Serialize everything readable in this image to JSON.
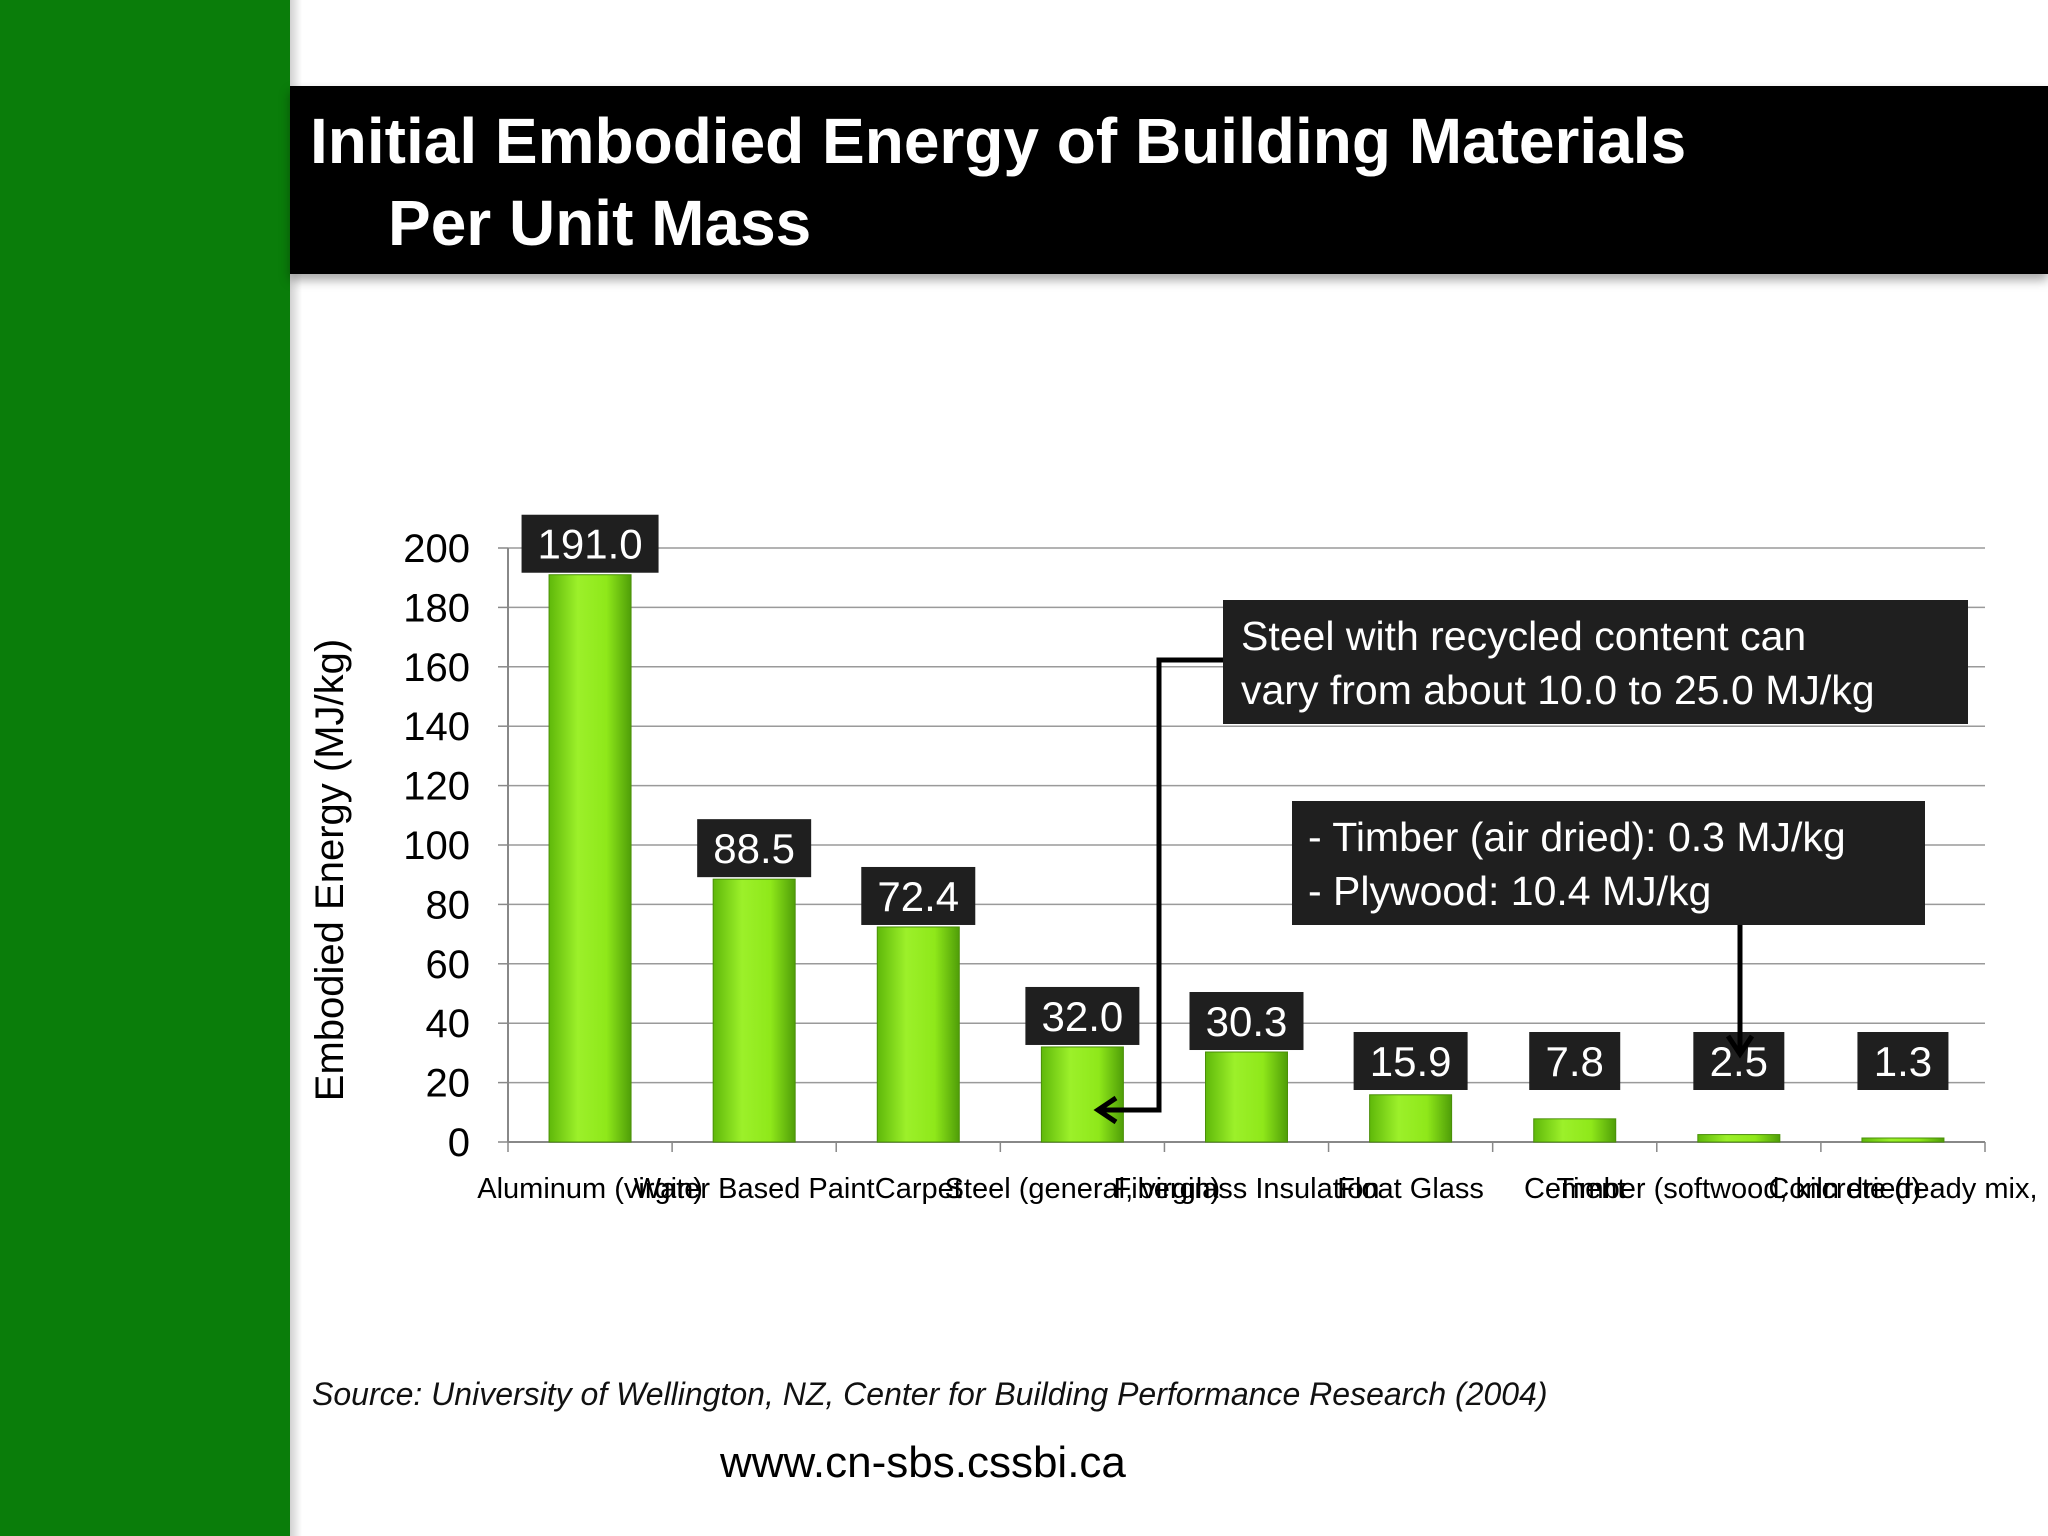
{
  "slide": {
    "title_line1": "Initial Embodied Energy of Building Materials",
    "title_line2": "Per Unit Mass",
    "source": "Source: University of Wellington, NZ, Center for Building Performance Research (2004)",
    "url": "www.cn-sbs.cssbi.ca",
    "colors": {
      "sidebar": "#0a7d0a",
      "bar": "#8fe81a",
      "label_box": "#1f1f1f"
    }
  },
  "callouts": {
    "steel": {
      "line1": "Steel with recycled content can",
      "line2": "vary from about 10.0 to 25.0 MJ/kg"
    },
    "timber": {
      "line1": "- Timber (air dried): 0.3 MJ/kg",
      "line2": "- Plywood: 10.4 MJ/kg"
    }
  },
  "chart_data": {
    "type": "bar",
    "categories": [
      "Aluminum (virgin)",
      "Water Based Paint",
      "Carpet",
      "Steel (general, virgin)",
      "Fiberglass Insulation",
      "Float Glass",
      "Cement",
      "Timber (softwood, kiln dried)",
      "Concrete (ready mix,"
    ],
    "values": [
      191.0,
      88.5,
      72.4,
      32.0,
      30.3,
      15.9,
      7.8,
      2.5,
      1.3
    ],
    "value_labels": [
      "191.0",
      "88.5",
      "72.4",
      "32.0",
      "30.3",
      "15.9",
      "7.8",
      "2.5",
      "1.3"
    ],
    "title": "",
    "xlabel": "",
    "ylabel": "Embodied Energy (MJ/kg)",
    "ylim": [
      0,
      200
    ],
    "yticks": [
      0,
      20,
      40,
      60,
      80,
      100,
      120,
      140,
      160,
      180,
      200
    ],
    "grid": true,
    "legend": "none"
  }
}
